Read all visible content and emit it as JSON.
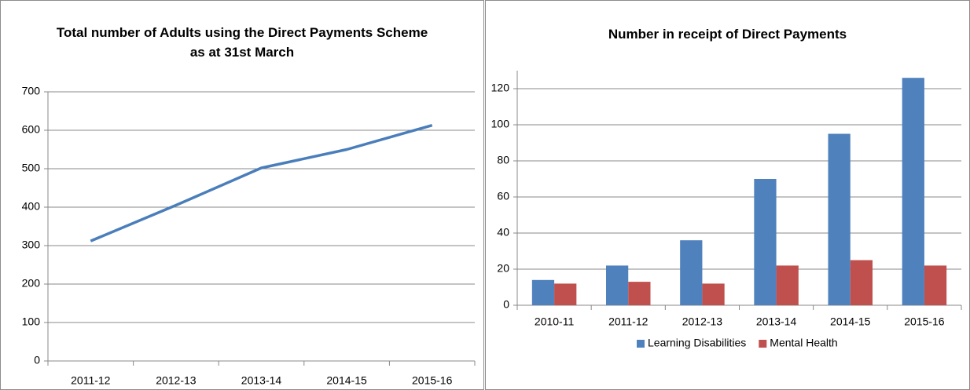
{
  "chart_data": [
    {
      "type": "line",
      "title": "Total number of Adults using the Direct Payments Scheme  as at 31st March",
      "categories": [
        "2011-12",
        "2012-13",
        "2013-14",
        "2014-15",
        "2015-16"
      ],
      "values": [
        312,
        405,
        502,
        550,
        613
      ],
      "color": "#4a7ebb",
      "ylim": [
        0,
        700
      ],
      "yticks": [
        0,
        100,
        200,
        300,
        400,
        500,
        600,
        700
      ],
      "grid": true
    },
    {
      "type": "bar",
      "title": "Number in receipt of Direct Payments",
      "categories": [
        "2010-11",
        "2011-12",
        "2012-13",
        "2013-14",
        "2014-15",
        "2015-16"
      ],
      "series": [
        {
          "name": "Learning Disabilities",
          "color": "#4f81bd",
          "values": [
            14,
            22,
            36,
            70,
            95,
            126
          ]
        },
        {
          "name": "Mental Health",
          "color": "#c0504d",
          "values": [
            12,
            13,
            12,
            22,
            25,
            22
          ]
        }
      ],
      "ylim": [
        0,
        130
      ],
      "yticks": [
        0,
        20,
        40,
        60,
        80,
        100,
        120
      ],
      "grid": true,
      "legend": "bottom"
    }
  ]
}
